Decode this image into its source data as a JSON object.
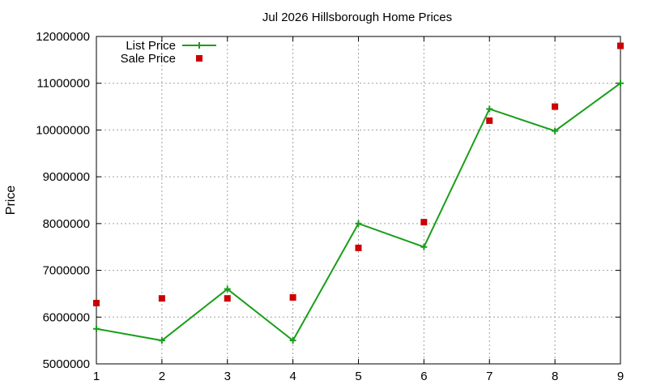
{
  "chart_data": {
    "type": "line",
    "title": "Jul 2026 Hillsborough Home Prices",
    "xlabel": "",
    "ylabel": "Price",
    "x": [
      1,
      2,
      3,
      4,
      5,
      6,
      7,
      8,
      9
    ],
    "xlim": [
      1,
      9
    ],
    "ylim": [
      5000000,
      12000000
    ],
    "x_ticks": [
      "1",
      "2",
      "3",
      "4",
      "5",
      "6",
      "7",
      "8",
      "9"
    ],
    "y_ticks": [
      "5000000",
      "6000000",
      "7000000",
      "8000000",
      "9000000",
      "10000000",
      "11000000",
      "12000000"
    ],
    "grid": true,
    "legend_position": "top-left",
    "series": [
      {
        "name": "List Price",
        "style": "line-with-plus-markers",
        "color": "#1a9e1a",
        "values": [
          5750000,
          5500000,
          6600000,
          5500000,
          8000000,
          7500000,
          10450000,
          9980000,
          11000000
        ]
      },
      {
        "name": "Sale Price",
        "style": "square-markers",
        "color": "#cc0000",
        "values": [
          6300000,
          6400000,
          6400000,
          6420000,
          7480000,
          8030000,
          10200000,
          10500000,
          11800000
        ]
      }
    ]
  }
}
